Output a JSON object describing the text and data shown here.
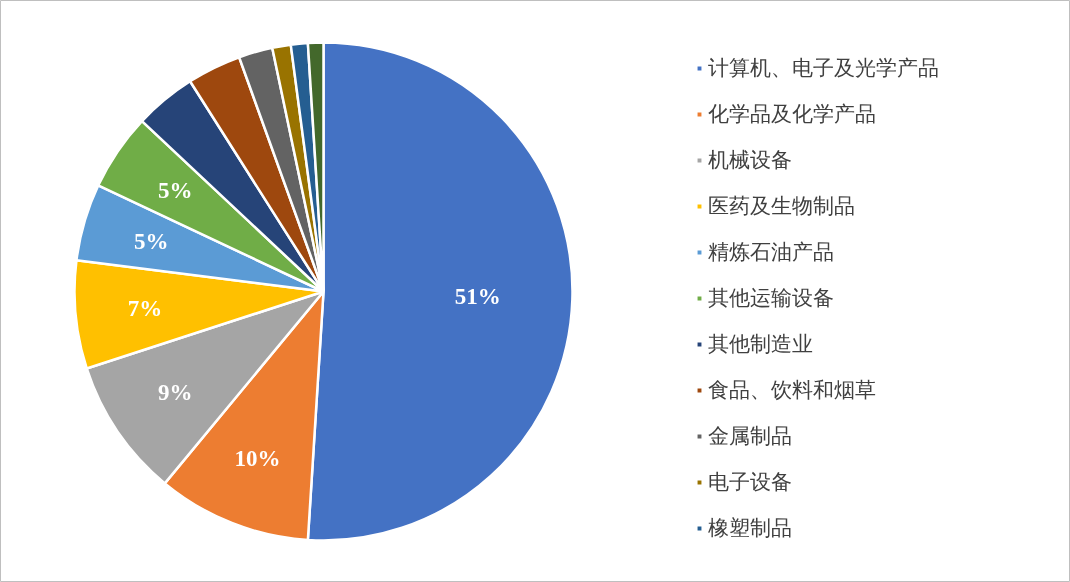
{
  "chart_data": {
    "type": "pie",
    "categories": [
      "计算机、电子及光学产品",
      "化学品及化学产品",
      "机械设备",
      "医药及生物制品",
      "精炼石油产品",
      "其他运输设备",
      "其他制造业",
      "食品、饮料和烟草",
      "金属制品",
      "电子设备",
      "橡塑制品",
      null
    ],
    "values": [
      51,
      10,
      9,
      7,
      5,
      5,
      4.0,
      3.5,
      2.2,
      1.2,
      1.1,
      1.0
    ],
    "value_labels": [
      "51%",
      "10%",
      "9%",
      "7%",
      "5%",
      "5%",
      null,
      null,
      null,
      null,
      null,
      null
    ],
    "colors": [
      "#4472c4",
      "#ed7d31",
      "#a5a5a5",
      "#ffc000",
      "#5b9bd5",
      "#70ad47",
      "#264478",
      "#9e480e",
      "#636363",
      "#997300",
      "#255e91",
      "#43682b"
    ],
    "legend": "right"
  }
}
